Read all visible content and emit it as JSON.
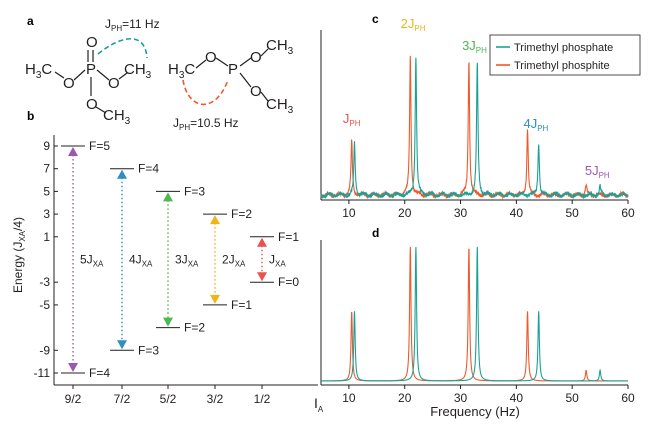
{
  "colors": {
    "teal": "#1aa196",
    "orange": "#ee5a2c",
    "purple": "#9b59b6",
    "blue": "#2e8fc0",
    "green": "#4cb84f",
    "yellow": "#f0b418",
    "red": "#e8534f",
    "black": "#231f20",
    "gray": "#555555"
  },
  "panel_a": {
    "label": "a",
    "phosphate_coupling": "J",
    "phosphate_coupling_sub": "PH",
    "phosphate_coupling_value": "=11 Hz",
    "phosphite_coupling": "J",
    "phosphite_coupling_sub": "PH",
    "phosphite_coupling_value": "=10.5 Hz",
    "atoms": {
      "h3c": "H",
      "h3c_sub": "3",
      "c": "C",
      "ch3": "CH",
      "ch3_sub": "3",
      "o": "O",
      "p": "P"
    }
  },
  "panel_b": {
    "label": "b",
    "ylabel": "Energy (J",
    "ylabel_sub": "XA",
    "ylabel_end": "/4)",
    "xlabel": "I",
    "xlabel_sub": "A",
    "yticks": [
      "9",
      "7",
      "5",
      "3",
      "1",
      "-3",
      "-5",
      "-9",
      "-11"
    ],
    "ytick_values": [
      9,
      7,
      5,
      3,
      1,
      -3,
      -5,
      -9,
      -11
    ],
    "columns": [
      "9/2",
      "7/2",
      "5/2",
      "3/2",
      "1/2"
    ],
    "levels": [
      {
        "column": "9/2",
        "upper_label": "F=5",
        "upper": 9,
        "lower_label": "F=4",
        "lower": -11,
        "transition": "5J",
        "transition_sub": "XA",
        "color": "purple"
      },
      {
        "column": "7/2",
        "upper_label": "F=4",
        "upper": 7,
        "lower_label": "F=3",
        "lower": -9,
        "transition": "4J",
        "transition_sub": "XA",
        "color": "blue"
      },
      {
        "column": "5/2",
        "upper_label": "F=3",
        "upper": 5,
        "lower_label": "F=2",
        "lower": -7,
        "transition": "3J",
        "transition_sub": "XA",
        "color": "green"
      },
      {
        "column": "3/2",
        "upper_label": "F=2",
        "upper": 3,
        "lower_label": "F=1",
        "lower": -5,
        "transition": "2J",
        "transition_sub": "XA",
        "color": "yellow"
      },
      {
        "column": "1/2",
        "upper_label": "F=1",
        "upper": 1,
        "lower_label": "F=0",
        "lower": -3,
        "transition": "J",
        "transition_sub": "XA",
        "color": "red"
      }
    ]
  },
  "chart_data": [
    {
      "type": "line",
      "panel": "c",
      "xlabel": "",
      "ylabel": "",
      "xlim": [
        5,
        60
      ],
      "xticks": [
        "10",
        "20",
        "30",
        "40",
        "50",
        "60"
      ],
      "legend_position": "top-right",
      "series": [
        {
          "name": "Trimethyl phosphate",
          "color": "teal",
          "peaks": [
            {
              "x": 11.0,
              "h": 0.35
            },
            {
              "x": 22.0,
              "h": 0.92
            },
            {
              "x": 33.0,
              "h": 0.88
            },
            {
              "x": 44.0,
              "h": 0.35
            },
            {
              "x": 55.0,
              "h": 0.06
            }
          ]
        },
        {
          "name": "Trimethyl phosphite",
          "color": "orange",
          "peaks": [
            {
              "x": 10.5,
              "h": 0.36
            },
            {
              "x": 21.0,
              "h": 0.92
            },
            {
              "x": 31.5,
              "h": 0.9
            },
            {
              "x": 42.0,
              "h": 0.44
            },
            {
              "x": 52.5,
              "h": 0.07
            }
          ]
        }
      ],
      "annotations": [
        {
          "text": "J",
          "sub": "PH",
          "x": 10.5,
          "color": "red"
        },
        {
          "text": "2J",
          "sub": "PH",
          "x": 21.5,
          "color": "yellow"
        },
        {
          "text": "3J",
          "sub": "PH",
          "x": 32.5,
          "color": "green"
        },
        {
          "text": "4J",
          "sub": "PH",
          "x": 43.5,
          "color": "blue"
        },
        {
          "text": "5J",
          "sub": "PH",
          "x": 54.5,
          "color": "purple"
        }
      ]
    },
    {
      "type": "line",
      "panel": "d",
      "xlabel": "Frequency (Hz)",
      "ylabel": "",
      "xlim": [
        5,
        60
      ],
      "xticks": [
        "10",
        "20",
        "30",
        "40",
        "50",
        "60"
      ],
      "series": [
        {
          "name": "Trimethyl phosphate",
          "color": "teal",
          "peaks": [
            {
              "x": 11.0,
              "h": 0.52
            },
            {
              "x": 22.0,
              "h": 1.0
            },
            {
              "x": 33.0,
              "h": 1.0
            },
            {
              "x": 44.0,
              "h": 0.52
            },
            {
              "x": 55.0,
              "h": 0.08
            }
          ]
        },
        {
          "name": "Trimethyl phosphite",
          "color": "orange",
          "peaks": [
            {
              "x": 10.5,
              "h": 0.52
            },
            {
              "x": 21.0,
              "h": 1.0
            },
            {
              "x": 31.5,
              "h": 1.0
            },
            {
              "x": 42.0,
              "h": 0.52
            },
            {
              "x": 52.5,
              "h": 0.08
            }
          ]
        }
      ]
    }
  ],
  "panel_labels": {
    "c": "c",
    "d": "d"
  }
}
